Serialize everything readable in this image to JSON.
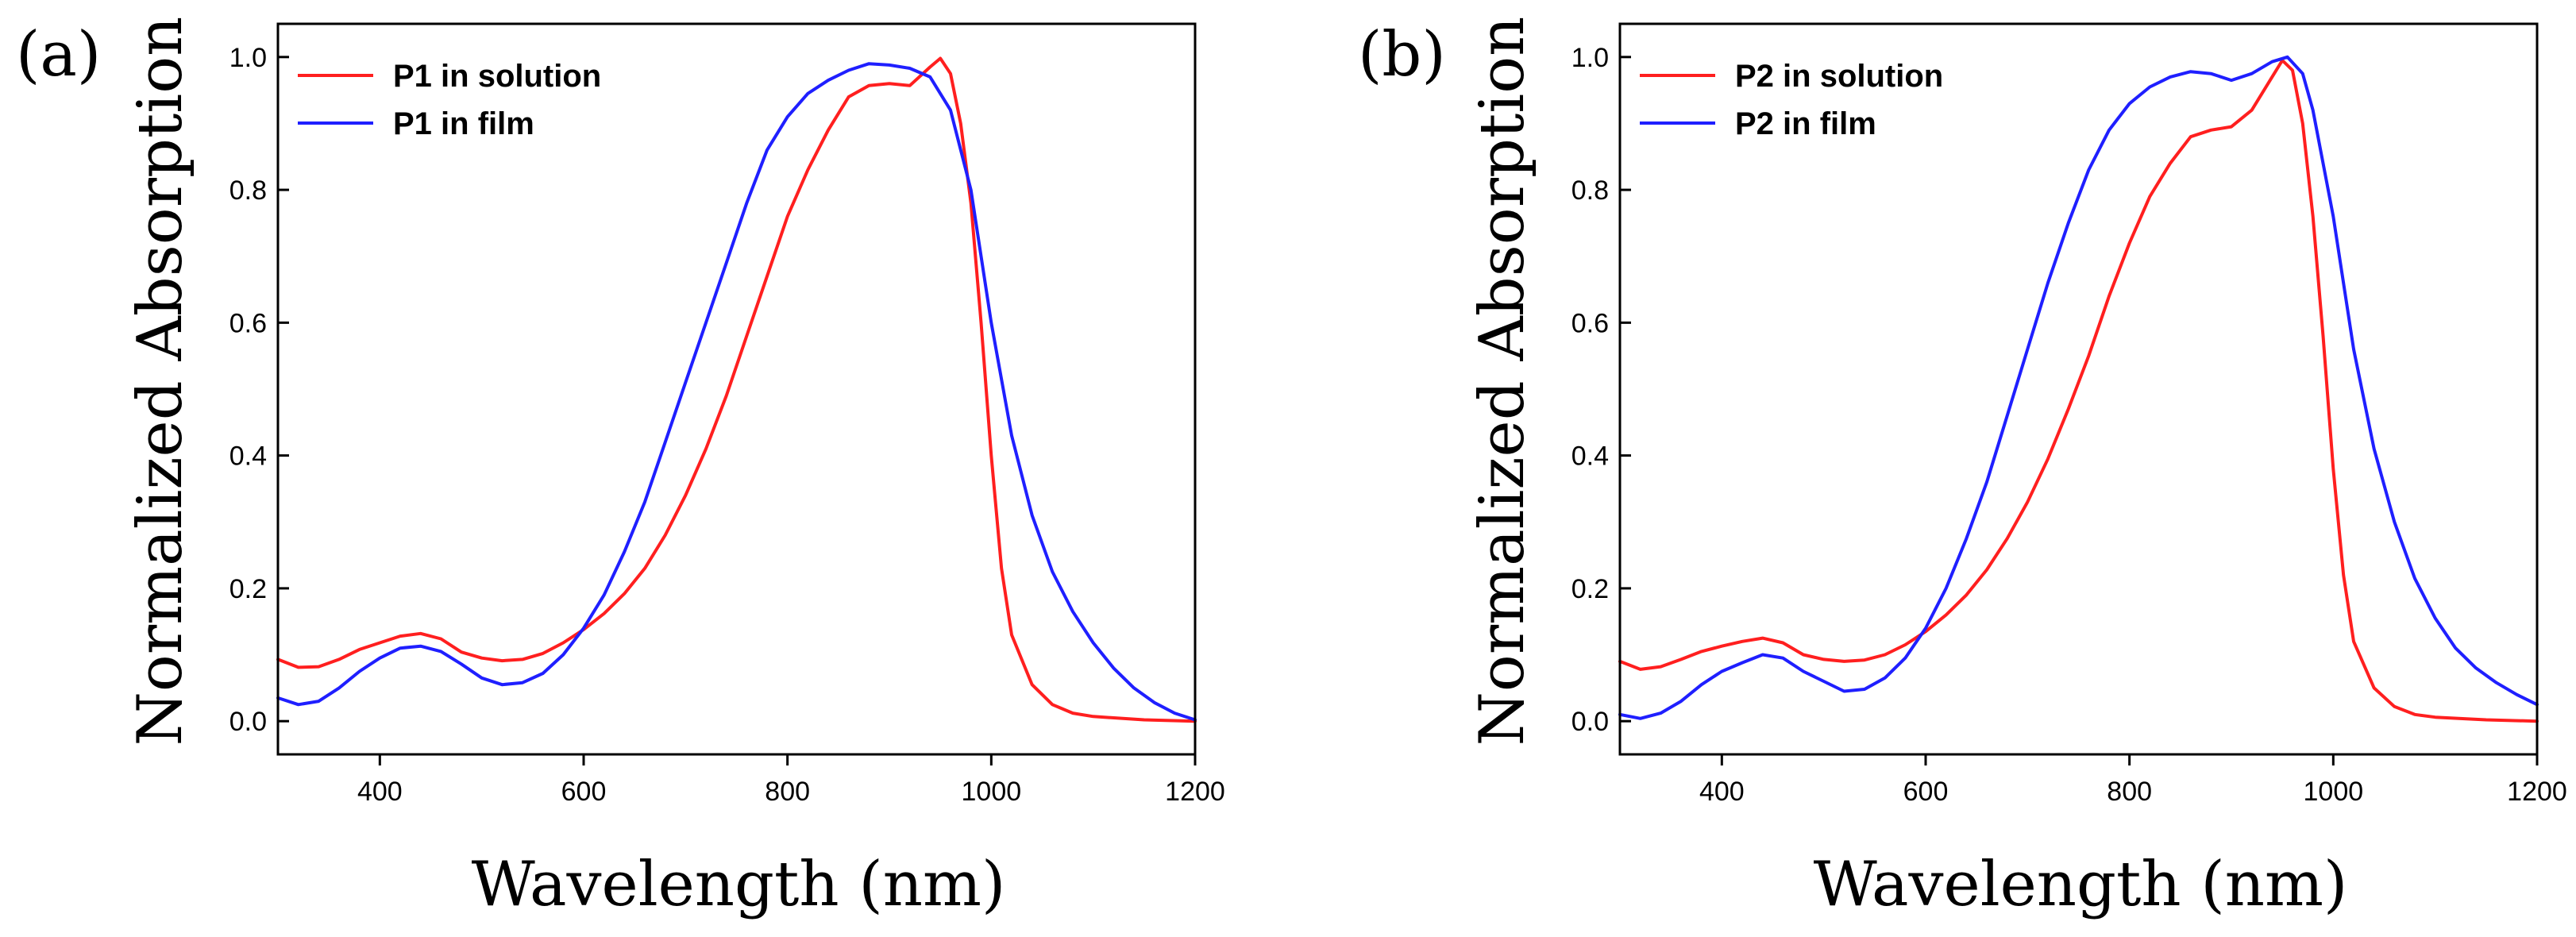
{
  "chart_data": [
    {
      "panel_label": "(a)",
      "type": "line",
      "xlabel": "Wavelength (nm)",
      "ylabel": "Normalized Absorption",
      "xlim": [
        300,
        1200
      ],
      "ylim": [
        -0.05,
        1.05
      ],
      "x_ticks": [
        400,
        600,
        800,
        1000,
        1200
      ],
      "x_tick_labels": [
        "400",
        "600",
        "800",
        "1000",
        "1200"
      ],
      "y_ticks": [
        0.0,
        0.2,
        0.4,
        0.6,
        0.8,
        1.0
      ],
      "y_tick_labels": [
        "0.0",
        "0.2",
        "0.4",
        "0.6",
        "0.8",
        "1.0"
      ],
      "legend_position": "top-left",
      "series": [
        {
          "name": "P1 in solution",
          "color": "#ff1f1f",
          "points": [
            [
              300,
              0.093
            ],
            [
              320,
              0.081
            ],
            [
              340,
              0.082
            ],
            [
              360,
              0.093
            ],
            [
              380,
              0.108
            ],
            [
              400,
              0.118
            ],
            [
              420,
              0.128
            ],
            [
              440,
              0.132
            ],
            [
              460,
              0.124
            ],
            [
              480,
              0.104
            ],
            [
              500,
              0.095
            ],
            [
              520,
              0.091
            ],
            [
              540,
              0.093
            ],
            [
              560,
              0.102
            ],
            [
              580,
              0.118
            ],
            [
              600,
              0.138
            ],
            [
              620,
              0.162
            ],
            [
              640,
              0.192
            ],
            [
              660,
              0.23
            ],
            [
              680,
              0.28
            ],
            [
              700,
              0.34
            ],
            [
              720,
              0.41
            ],
            [
              740,
              0.49
            ],
            [
              760,
              0.58
            ],
            [
              780,
              0.67
            ],
            [
              800,
              0.76
            ],
            [
              820,
              0.83
            ],
            [
              840,
              0.89
            ],
            [
              860,
              0.94
            ],
            [
              880,
              0.957
            ],
            [
              900,
              0.96
            ],
            [
              920,
              0.957
            ],
            [
              940,
              0.985
            ],
            [
              950,
              0.998
            ],
            [
              960,
              0.975
            ],
            [
              970,
              0.9
            ],
            [
              980,
              0.78
            ],
            [
              990,
              0.6
            ],
            [
              1000,
              0.4
            ],
            [
              1010,
              0.23
            ],
            [
              1020,
              0.13
            ],
            [
              1040,
              0.055
            ],
            [
              1060,
              0.025
            ],
            [
              1080,
              0.012
            ],
            [
              1100,
              0.007
            ],
            [
              1150,
              0.002
            ],
            [
              1200,
              0.0
            ]
          ]
        },
        {
          "name": "P1 in film",
          "color": "#1f1fff",
          "points": [
            [
              300,
              0.035
            ],
            [
              320,
              0.025
            ],
            [
              340,
              0.03
            ],
            [
              360,
              0.05
            ],
            [
              380,
              0.075
            ],
            [
              400,
              0.095
            ],
            [
              420,
              0.11
            ],
            [
              440,
              0.113
            ],
            [
              460,
              0.105
            ],
            [
              480,
              0.086
            ],
            [
              500,
              0.065
            ],
            [
              520,
              0.055
            ],
            [
              540,
              0.058
            ],
            [
              560,
              0.072
            ],
            [
              580,
              0.1
            ],
            [
              600,
              0.14
            ],
            [
              620,
              0.19
            ],
            [
              640,
              0.255
            ],
            [
              660,
              0.33
            ],
            [
              680,
              0.42
            ],
            [
              700,
              0.51
            ],
            [
              720,
              0.6
            ],
            [
              740,
              0.69
            ],
            [
              760,
              0.78
            ],
            [
              780,
              0.86
            ],
            [
              800,
              0.91
            ],
            [
              820,
              0.945
            ],
            [
              840,
              0.965
            ],
            [
              860,
              0.98
            ],
            [
              880,
              0.99
            ],
            [
              900,
              0.988
            ],
            [
              920,
              0.983
            ],
            [
              940,
              0.97
            ],
            [
              960,
              0.92
            ],
            [
              980,
              0.8
            ],
            [
              1000,
              0.6
            ],
            [
              1020,
              0.43
            ],
            [
              1040,
              0.31
            ],
            [
              1060,
              0.225
            ],
            [
              1080,
              0.165
            ],
            [
              1100,
              0.118
            ],
            [
              1120,
              0.08
            ],
            [
              1140,
              0.05
            ],
            [
              1160,
              0.028
            ],
            [
              1180,
              0.012
            ],
            [
              1200,
              0.002
            ]
          ]
        }
      ]
    },
    {
      "panel_label": "(b)",
      "type": "line",
      "xlabel": "Wavelength (nm)",
      "ylabel": "Normalized Absorption",
      "xlim": [
        300,
        1200
      ],
      "ylim": [
        -0.05,
        1.05
      ],
      "x_ticks": [
        400,
        600,
        800,
        1000,
        1200
      ],
      "x_tick_labels": [
        "400",
        "600",
        "800",
        "1000",
        "1200"
      ],
      "y_ticks": [
        0.0,
        0.2,
        0.4,
        0.6,
        0.8,
        1.0
      ],
      "y_tick_labels": [
        "0.0",
        "0.2",
        "0.4",
        "0.6",
        "0.8",
        "1.0"
      ],
      "legend_position": "top-left",
      "series": [
        {
          "name": "P2 in solution",
          "color": "#ff1f1f",
          "points": [
            [
              300,
              0.09
            ],
            [
              320,
              0.078
            ],
            [
              340,
              0.082
            ],
            [
              360,
              0.093
            ],
            [
              380,
              0.105
            ],
            [
              400,
              0.113
            ],
            [
              420,
              0.12
            ],
            [
              440,
              0.125
            ],
            [
              460,
              0.118
            ],
            [
              480,
              0.1
            ],
            [
              500,
              0.093
            ],
            [
              520,
              0.09
            ],
            [
              540,
              0.092
            ],
            [
              560,
              0.1
            ],
            [
              580,
              0.115
            ],
            [
              600,
              0.135
            ],
            [
              620,
              0.16
            ],
            [
              640,
              0.19
            ],
            [
              660,
              0.228
            ],
            [
              680,
              0.275
            ],
            [
              700,
              0.33
            ],
            [
              720,
              0.395
            ],
            [
              740,
              0.47
            ],
            [
              760,
              0.55
            ],
            [
              780,
              0.64
            ],
            [
              800,
              0.72
            ],
            [
              820,
              0.79
            ],
            [
              840,
              0.84
            ],
            [
              860,
              0.88
            ],
            [
              880,
              0.89
            ],
            [
              900,
              0.895
            ],
            [
              920,
              0.92
            ],
            [
              940,
              0.97
            ],
            [
              950,
              0.995
            ],
            [
              960,
              0.98
            ],
            [
              970,
              0.9
            ],
            [
              980,
              0.76
            ],
            [
              990,
              0.58
            ],
            [
              1000,
              0.38
            ],
            [
              1010,
              0.22
            ],
            [
              1020,
              0.12
            ],
            [
              1040,
              0.05
            ],
            [
              1060,
              0.022
            ],
            [
              1080,
              0.01
            ],
            [
              1100,
              0.006
            ],
            [
              1150,
              0.002
            ],
            [
              1200,
              0.0
            ]
          ]
        },
        {
          "name": "P2 in film",
          "color": "#1f1fff",
          "points": [
            [
              300,
              0.01
            ],
            [
              320,
              0.004
            ],
            [
              340,
              0.012
            ],
            [
              360,
              0.03
            ],
            [
              380,
              0.055
            ],
            [
              400,
              0.075
            ],
            [
              420,
              0.088
            ],
            [
              440,
              0.1
            ],
            [
              460,
              0.095
            ],
            [
              480,
              0.075
            ],
            [
              500,
              0.06
            ],
            [
              520,
              0.045
            ],
            [
              540,
              0.048
            ],
            [
              560,
              0.065
            ],
            [
              580,
              0.095
            ],
            [
              600,
              0.14
            ],
            [
              620,
              0.2
            ],
            [
              640,
              0.275
            ],
            [
              660,
              0.36
            ],
            [
              680,
              0.46
            ],
            [
              700,
              0.56
            ],
            [
              720,
              0.66
            ],
            [
              740,
              0.75
            ],
            [
              760,
              0.83
            ],
            [
              780,
              0.89
            ],
            [
              800,
              0.93
            ],
            [
              820,
              0.955
            ],
            [
              840,
              0.97
            ],
            [
              860,
              0.978
            ],
            [
              880,
              0.975
            ],
            [
              900,
              0.965
            ],
            [
              920,
              0.975
            ],
            [
              940,
              0.993
            ],
            [
              955,
              1.0
            ],
            [
              970,
              0.975
            ],
            [
              980,
              0.92
            ],
            [
              1000,
              0.76
            ],
            [
              1020,
              0.56
            ],
            [
              1040,
              0.41
            ],
            [
              1060,
              0.3
            ],
            [
              1080,
              0.215
            ],
            [
              1100,
              0.155
            ],
            [
              1120,
              0.11
            ],
            [
              1140,
              0.08
            ],
            [
              1160,
              0.058
            ],
            [
              1180,
              0.04
            ],
            [
              1200,
              0.025
            ]
          ]
        }
      ]
    }
  ]
}
